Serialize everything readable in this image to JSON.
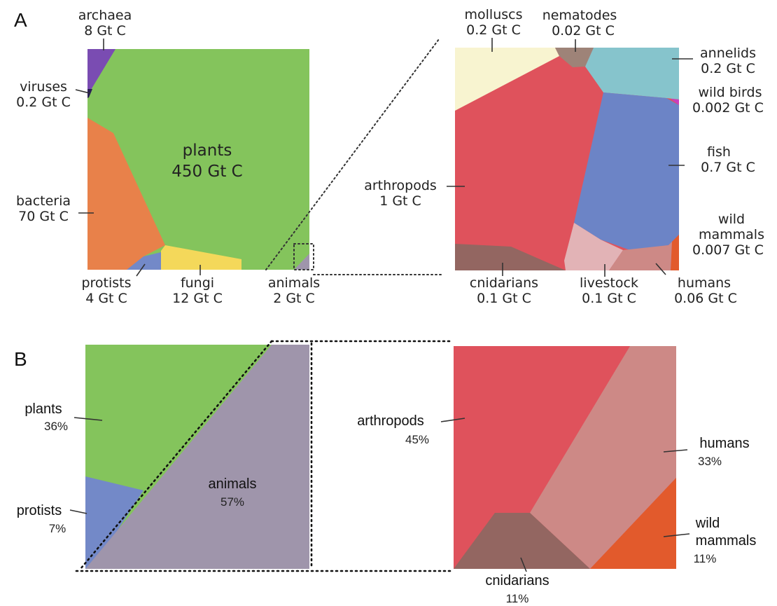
{
  "panels": {
    "a": "A",
    "b": "B"
  },
  "colors": {
    "plants": "#84c45c",
    "archaea": "#7a4cb2",
    "viruses": "#2a1f55",
    "bacteria": "#e8814a",
    "protists": "#7389c8",
    "fungi": "#f4d85a",
    "animals": "#9f95ab",
    "molluscs": "#f8f4d0",
    "nematodes": "#9e8378",
    "annelids": "#86c4cc",
    "wild_birds": "#c83fbe",
    "fish": "#6c84c6",
    "arthropods": "#df525c",
    "wild_mammals": "#e25a2c",
    "cnidarians": "#936661",
    "livestock": "#e2b3b6",
    "humans": "#cd8986"
  },
  "panel_a_left": {
    "archaea": {
      "name": "archaea",
      "value": "8 Gt C"
    },
    "viruses": {
      "name": "viruses",
      "value": "0.2 Gt C"
    },
    "plants": {
      "name": "plants",
      "value": "450 Gt C"
    },
    "bacteria": {
      "name": "bacteria",
      "value": "70 Gt C"
    },
    "protists": {
      "name": "protists",
      "value": "4 Gt C"
    },
    "fungi": {
      "name": "fungi",
      "value": "12 Gt C"
    },
    "animals": {
      "name": "animals",
      "value": "2 Gt C"
    }
  },
  "panel_a_right": {
    "molluscs": {
      "name": "molluscs",
      "value": "0.2 Gt C"
    },
    "nematodes": {
      "name": "nematodes",
      "value": "0.02 Gt C"
    },
    "annelids": {
      "name": "annelids",
      "value": "0.2 Gt C"
    },
    "wild_birds": {
      "name": "wild birds",
      "value": "0.002 Gt C"
    },
    "fish": {
      "name": "fish",
      "value": "0.7 Gt C"
    },
    "arthropods": {
      "name": "arthropods",
      "value": "1 Gt C"
    },
    "wild_mammals": {
      "name_line1": "wild",
      "name_line2": "mammals",
      "value": "0.007 Gt C"
    },
    "cnidarians": {
      "name": "cnidarians",
      "value": "0.1 Gt C"
    },
    "livestock": {
      "name": "livestock",
      "value": "0.1 Gt C"
    },
    "humans": {
      "name": "humans",
      "value": "0.06 Gt C"
    }
  },
  "panel_b_left": {
    "plants": {
      "name": "plants",
      "value": "36%"
    },
    "protists": {
      "name": "protists",
      "value": "7%"
    },
    "animals": {
      "name": "animals",
      "value": "57%"
    }
  },
  "panel_b_right": {
    "arthropods": {
      "name": "arthropods",
      "value": "45%"
    },
    "humans": {
      "name": "humans",
      "value": "33%"
    },
    "wild_mammals": {
      "name_line1": "wild",
      "name_line2": "mammals",
      "value": "11%"
    },
    "cnidarians": {
      "name": "cnidarians",
      "value": "11%"
    }
  }
}
